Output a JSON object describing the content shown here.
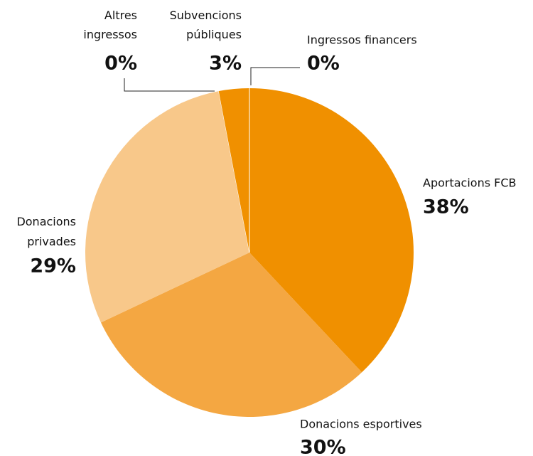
{
  "chart_data": {
    "type": "pie",
    "categories": [
      "Aportacions FCB",
      "Donacions esportives",
      "Donacions privades",
      "Altres ingressos",
      "Subvencions públiques",
      "Ingressos financers"
    ],
    "values": [
      38,
      30,
      29,
      0,
      3,
      0
    ],
    "value_labels": [
      "38%",
      "30%",
      "29%",
      "0%",
      "3%",
      "0%"
    ],
    "colors": [
      "#f09000",
      "#f4a742",
      "#f8c88a",
      "#f09000",
      "#f09000",
      "#f09000"
    ]
  }
}
